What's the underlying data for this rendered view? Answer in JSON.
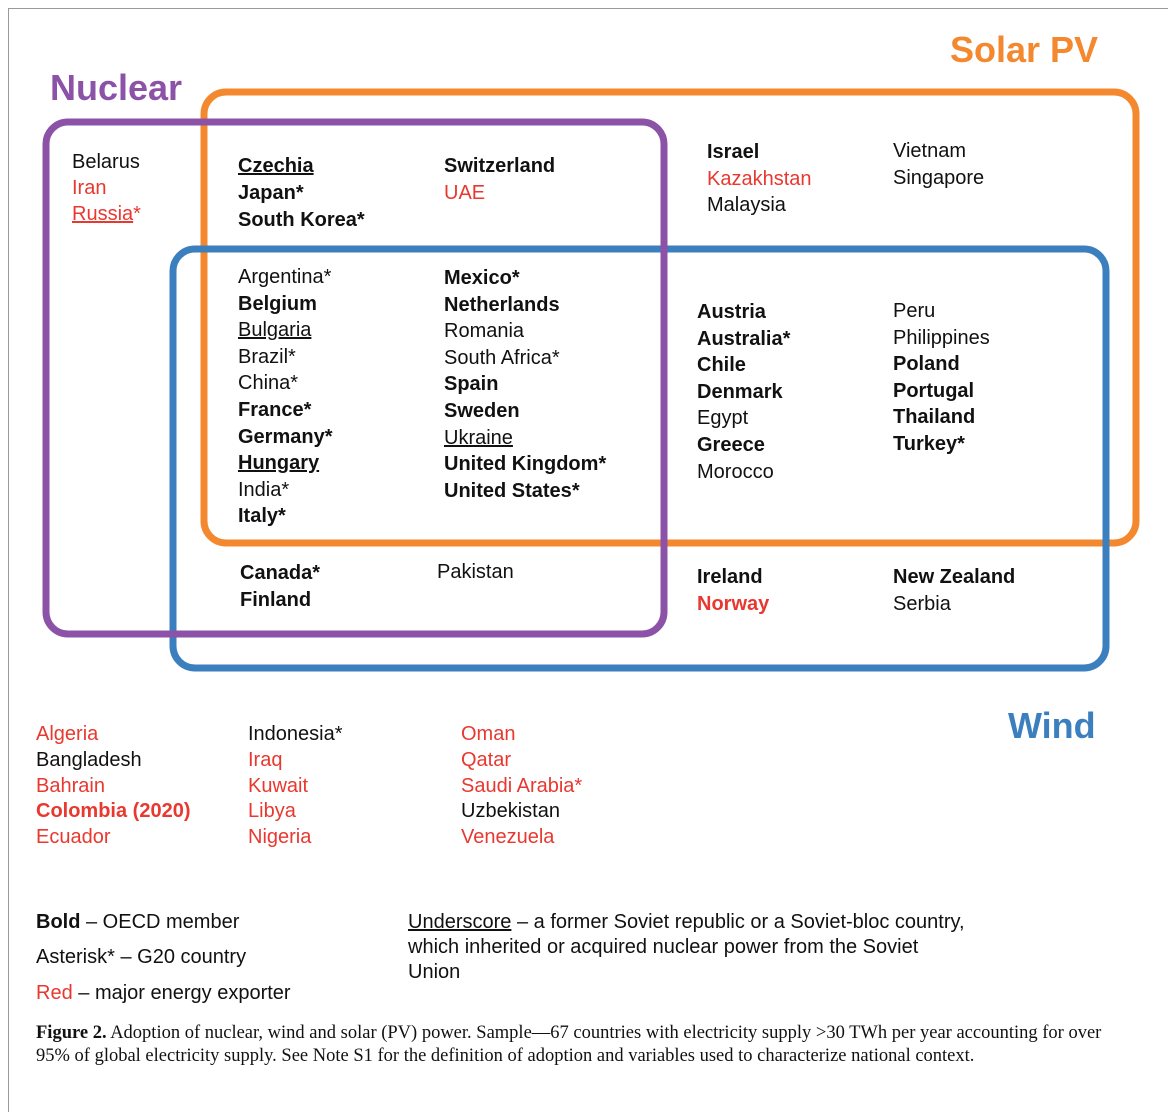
{
  "sets": [
    {
      "label": "Nuclear",
      "color": "#8b52a8"
    },
    {
      "label": "Solar PV",
      "color": "#f3882f"
    },
    {
      "label": "Wind",
      "color": "#3b7fbf"
    }
  ],
  "regions": [
    {
      "columns": [
        [
          {
            "name": "Belarus"
          },
          {
            "name": "Iran",
            "red": true
          },
          {
            "name": "Russia",
            "red": true,
            "underline": true,
            "mark": "*"
          }
        ]
      ]
    },
    {
      "columns": [
        [
          {
            "name": "Czechia",
            "bold": true,
            "underline": true
          },
          {
            "name": "Japan",
            "bold": true,
            "mark": "*"
          },
          {
            "name": "South Korea",
            "bold": true,
            "mark": "*"
          }
        ],
        [
          {
            "name": "Switzerland",
            "bold": true
          },
          {
            "name": "UAE",
            "red": true
          }
        ]
      ]
    },
    {
      "columns": [
        [
          {
            "name": "Israel",
            "bold": true
          },
          {
            "name": "Kazakhstan",
            "red": true
          },
          {
            "name": "Malaysia"
          }
        ],
        [
          {
            "name": "Vietnam"
          },
          {
            "name": "Singapore"
          }
        ]
      ]
    },
    {
      "columns": [
        [
          {
            "name": "Argentina",
            "mark": "*"
          },
          {
            "name": "Belgium",
            "bold": true
          },
          {
            "name": "Bulgaria",
            "underline": true
          },
          {
            "name": "Brazil",
            "mark": "*"
          },
          {
            "name": "China",
            "mark": "*"
          },
          {
            "name": "France",
            "bold": true,
            "mark": "*"
          },
          {
            "name": "Germany",
            "bold": true,
            "mark": "*"
          },
          {
            "name": "Hungary",
            "bold": true,
            "underline": true
          },
          {
            "name": "India",
            "mark": "*"
          },
          {
            "name": "Italy",
            "bold": true,
            "mark": "*"
          }
        ],
        [
          {
            "name": "Mexico",
            "bold": true,
            "mark": "*"
          },
          {
            "name": "Netherlands",
            "bold": true
          },
          {
            "name": "Romania"
          },
          {
            "name": "South Africa",
            "mark": "*"
          },
          {
            "name": "Spain",
            "bold": true
          },
          {
            "name": "Sweden",
            "bold": true
          },
          {
            "name": "Ukraine",
            "underline": true
          },
          {
            "name": "United Kingdom",
            "bold": true,
            "mark": "*"
          },
          {
            "name": "United States",
            "bold": true,
            "mark": "*"
          }
        ]
      ]
    },
    {
      "columns": [
        [
          {
            "name": "Austria",
            "bold": true
          },
          {
            "name": "Australia",
            "bold": true,
            "mark": "*"
          },
          {
            "name": "Chile",
            "bold": true
          },
          {
            "name": "Denmark",
            "bold": true
          },
          {
            "name": "Egypt"
          },
          {
            "name": "Greece",
            "bold": true
          },
          {
            "name": "Morocco"
          }
        ],
        [
          {
            "name": "Peru"
          },
          {
            "name": "Philippines"
          },
          {
            "name": "Poland",
            "bold": true
          },
          {
            "name": "Portugal",
            "bold": true
          },
          {
            "name": "Thailand",
            "bold": true
          },
          {
            "name": "Turkey",
            "bold": true,
            "mark": "*"
          }
        ]
      ]
    },
    {
      "columns": [
        [
          {
            "name": "Canada",
            "bold": true,
            "mark": "*"
          },
          {
            "name": "Finland",
            "bold": true
          }
        ],
        [
          {
            "name": "Pakistan"
          }
        ]
      ]
    },
    {
      "columns": [
        [
          {
            "name": "Ireland",
            "bold": true
          },
          {
            "name": "Norway",
            "bold": true,
            "red": true
          }
        ],
        [
          {
            "name": "New Zealand",
            "bold": true
          },
          {
            "name": "Serbia"
          }
        ]
      ]
    },
    {
      "columns": [
        [
          {
            "name": "Algeria",
            "red": true
          },
          {
            "name": "Bangladesh"
          },
          {
            "name": "Bahrain",
            "red": true
          },
          {
            "name": "Colombia (2020)",
            "bold": true,
            "red": true
          },
          {
            "name": "Ecuador",
            "red": true
          }
        ],
        [
          {
            "name": "Indonesia",
            "mark": "*"
          },
          {
            "name": "Iraq",
            "red": true
          },
          {
            "name": "Kuwait",
            "red": true
          },
          {
            "name": "Libya",
            "red": true
          },
          {
            "name": "Nigeria",
            "red": true
          }
        ],
        [
          {
            "name": "Oman",
            "red": true
          },
          {
            "name": "Qatar",
            "red": true
          },
          {
            "name": "Saudi Arabia",
            "red": true,
            "mark": "*"
          },
          {
            "name": "Uzbekistan"
          },
          {
            "name": "Venezuela",
            "red": true
          }
        ]
      ]
    }
  ],
  "legend": [
    {
      "term": "Bold",
      "text": "– OECD member",
      "bold": true
    },
    {
      "term": "Asterisk*",
      "text": "– G20 country"
    },
    {
      "term": "Red",
      "text": "– major energy exporter",
      "red": true
    },
    {
      "term": "Underscore",
      "text": "– a former Soviet republic or a Soviet-bloc country, which inherited or acquired nuclear power from the Soviet Union",
      "underline": true
    }
  ],
  "caption": {
    "label": "Figure 2.",
    "text": "Adoption of nuclear, wind and solar (PV) power. Sample—67 countries with electricity supply >30 TWh per year accounting for over 95% of global electricity supply. See Note S1 for the definition of adoption and variables used to characterize national context."
  }
}
